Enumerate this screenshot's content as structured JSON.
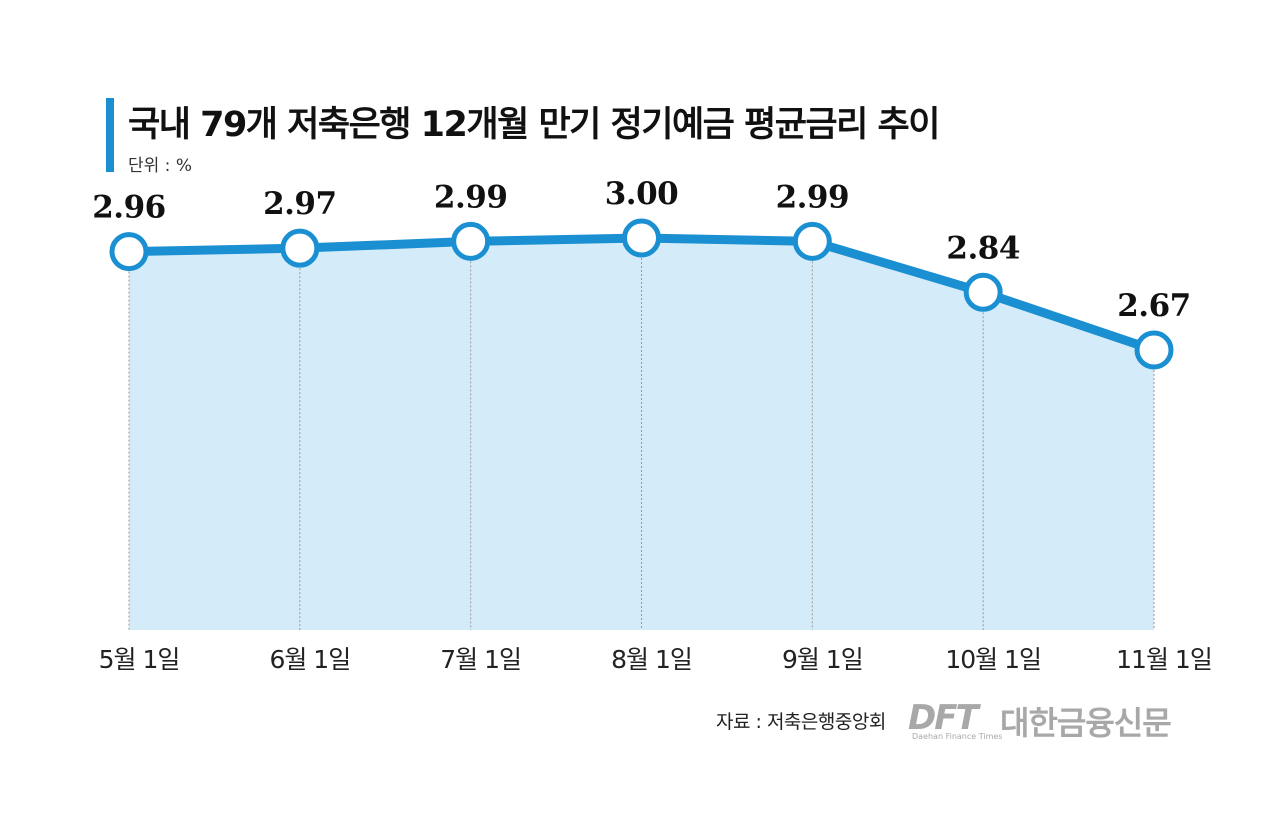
{
  "title": "국내 79개 저축은행 12개월 만기 정기예금 평균금리 추이",
  "unit": "단위 : %",
  "source": "자료 : 저축은행중앙회",
  "logo": {
    "mark": "DFT",
    "name": "대한금융신문",
    "english": "Daehan Finance Times"
  },
  "colors": {
    "accent": "#1a8fd1",
    "area_fill": "#d4ecf9",
    "point_fill": "#ffffff",
    "guide_line": "#999999"
  },
  "chart_data": {
    "type": "area",
    "categories": [
      "5월 1일",
      "6월 1일",
      "7월 1일",
      "8월 1일",
      "9월 1일",
      "10월 1일",
      "11월 1일"
    ],
    "values": [
      2.96,
      2.97,
      2.99,
      3.0,
      2.99,
      2.84,
      2.67
    ],
    "value_labels": [
      "2.96",
      "2.97",
      "2.99",
      "3.00",
      "2.99",
      "2.84",
      "2.67"
    ],
    "data_labels_shown": true,
    "grid": false,
    "legend": "none"
  }
}
